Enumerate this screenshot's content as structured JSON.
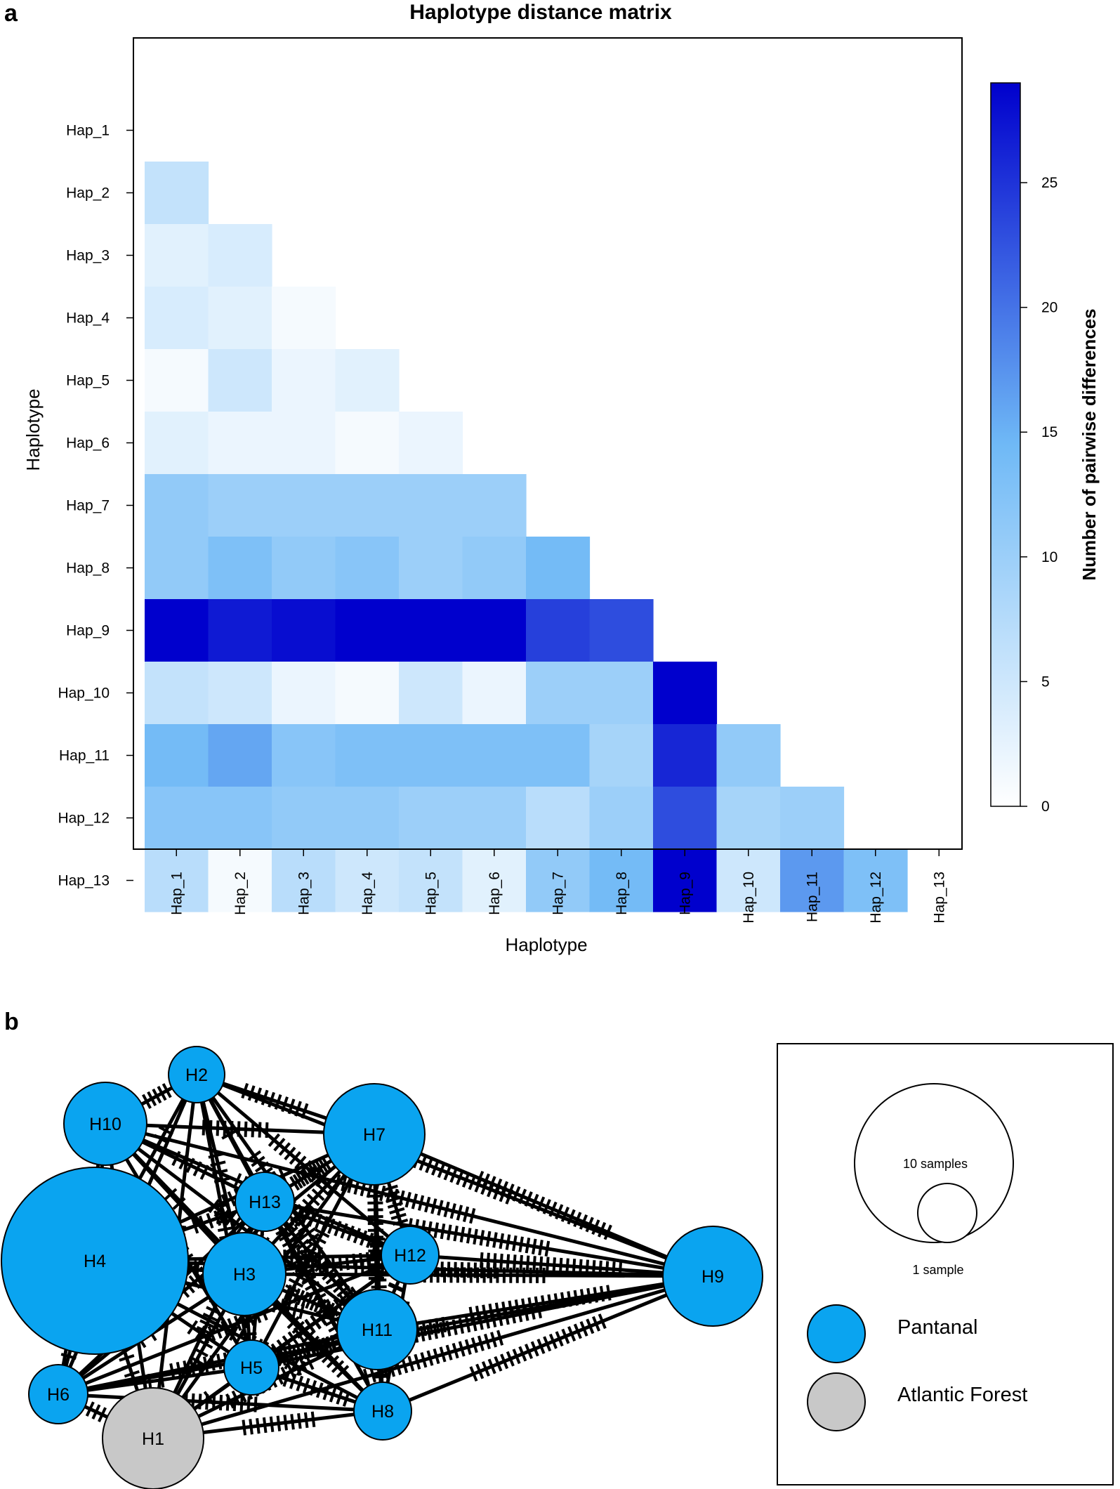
{
  "panel_a_label": "a",
  "panel_b_label": "b",
  "chart_data": [
    {
      "type": "heatmap",
      "title": "Haplotype distance matrix",
      "xlabel": "Haplotype",
      "ylabel": "Haplotype",
      "rows": [
        "Hap_1",
        "Hap_2",
        "Hap_3",
        "Hap_4",
        "Hap_5",
        "Hap_6",
        "Hap_7",
        "Hap_8",
        "Hap_9",
        "Hap_10",
        "Hap_11",
        "Hap_12",
        "Hap_13"
      ],
      "cols": [
        "Hap_1",
        "Hap_2",
        "Hap_3",
        "Hap_4",
        "Hap_5",
        "Hap_6",
        "Hap_7",
        "Hap_8",
        "Hap_9",
        "Hap_10",
        "Hap_11",
        "Hap_12",
        "Hap_13"
      ],
      "values": [
        [
          null,
          null,
          null,
          null,
          null,
          null,
          null,
          null,
          null,
          null,
          null,
          null,
          null
        ],
        [
          6,
          null,
          null,
          null,
          null,
          null,
          null,
          null,
          null,
          null,
          null,
          null,
          null
        ],
        [
          3,
          4,
          null,
          null,
          null,
          null,
          null,
          null,
          null,
          null,
          null,
          null,
          null
        ],
        [
          4,
          3,
          1,
          null,
          null,
          null,
          null,
          null,
          null,
          null,
          null,
          null,
          null
        ],
        [
          1,
          5,
          2,
          3,
          null,
          null,
          null,
          null,
          null,
          null,
          null,
          null,
          null
        ],
        [
          3,
          2,
          2,
          1,
          2,
          null,
          null,
          null,
          null,
          null,
          null,
          null,
          null
        ],
        [
          11,
          10,
          10,
          10,
          10,
          10,
          null,
          null,
          null,
          null,
          null,
          null,
          null
        ],
        [
          11,
          13,
          11,
          12,
          10,
          11,
          14,
          null,
          null,
          null,
          null,
          null,
          null
        ],
        [
          29,
          27,
          28,
          29,
          29,
          29,
          24,
          23,
          null,
          null,
          null,
          null,
          null
        ],
        [
          6,
          5,
          2,
          1,
          5,
          2,
          10,
          10,
          29,
          null,
          null,
          null,
          null
        ],
        [
          14,
          16,
          12,
          13,
          13,
          13,
          13,
          9,
          26,
          11,
          null,
          null,
          null
        ],
        [
          12,
          12,
          11,
          11,
          10,
          10,
          7,
          10,
          23,
          9,
          10,
          null,
          null
        ],
        [
          7,
          1,
          7,
          5,
          6,
          3,
          11,
          14,
          29,
          5,
          17,
          13,
          null
        ]
      ],
      "colorbar": {
        "label": "Number of pairwise differences",
        "range": [
          0,
          29
        ],
        "ticks": [
          "0",
          "5",
          "10",
          "15",
          "20",
          "25"
        ],
        "low_color": "#ffffff",
        "high_color": "#0000cd"
      }
    },
    {
      "type": "network",
      "nodes": [
        {
          "id": "H1",
          "label": "H1",
          "group": "Atlantic Forest"
        },
        {
          "id": "H2",
          "label": "H2",
          "group": "Pantanal"
        },
        {
          "id": "H3",
          "label": "H3",
          "group": "Pantanal"
        },
        {
          "id": "H4",
          "label": "H4",
          "group": "Pantanal"
        },
        {
          "id": "H5",
          "label": "H5",
          "group": "Pantanal"
        },
        {
          "id": "H6",
          "label": "H6",
          "group": "Pantanal"
        },
        {
          "id": "H7",
          "label": "H7",
          "group": "Pantanal"
        },
        {
          "id": "H8",
          "label": "H8",
          "group": "Pantanal"
        },
        {
          "id": "H9",
          "label": "H9",
          "group": "Pantanal"
        },
        {
          "id": "H10",
          "label": "H10",
          "group": "Pantanal"
        },
        {
          "id": "H11",
          "label": "H11",
          "group": "Pantanal"
        },
        {
          "id": "H12",
          "label": "H12",
          "group": "Pantanal"
        },
        {
          "id": "H13",
          "label": "H13",
          "group": "Pantanal"
        }
      ],
      "edges": "all pairs of haplotypes; hatch marks on each edge show the pairwise differences from the matrix",
      "legend": {
        "size_large": "10 samples",
        "size_small": "1 sample",
        "groups": [
          {
            "name": "Pantanal",
            "color": "#0aa4f0"
          },
          {
            "name": "Atlantic Forest",
            "color": "#c8c8c8"
          }
        ]
      }
    }
  ]
}
